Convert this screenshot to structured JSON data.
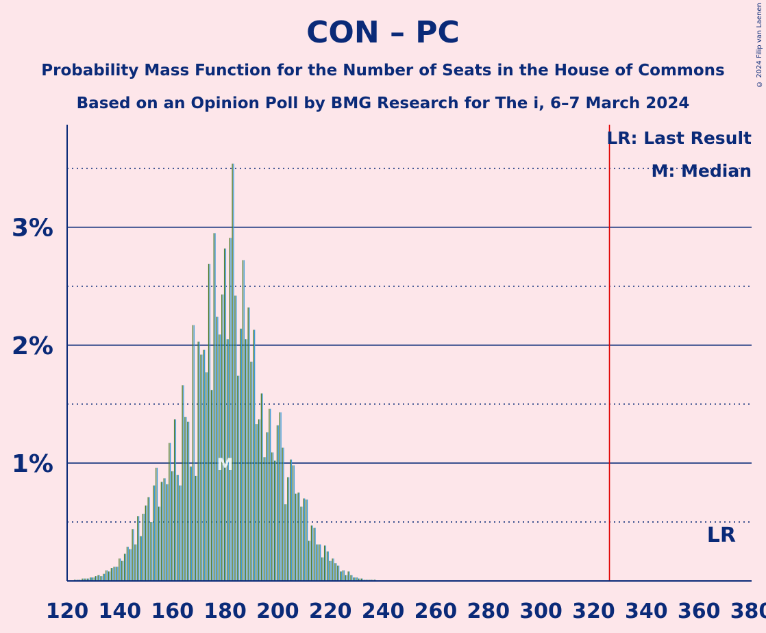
{
  "title": "CON – PC",
  "subtitle_line1": "Probability Mass Function for the Number of Seats in the House of Commons",
  "subtitle_line2": "Based on an Opinion Poll by BMG Research for The i, 6–7 March 2024",
  "credit": "© 2024 Filip van Laenen",
  "colors": {
    "background": "#fde6ea",
    "text": "#0a2a78",
    "bar_green": "#4a7a28",
    "bar_blue": "#3a9ad8",
    "last_result_line": "#e00000"
  },
  "chart_data": {
    "type": "bar",
    "xlim": [
      120,
      380
    ],
    "ylim": [
      0,
      3.87
    ],
    "x_ticks": [
      120,
      140,
      160,
      180,
      200,
      220,
      240,
      260,
      280,
      300,
      320,
      340,
      360,
      380
    ],
    "y_ticks": [
      {
        "value": 1,
        "label": "1%"
      },
      {
        "value": 2,
        "label": "2%"
      },
      {
        "value": 3,
        "label": "3%"
      }
    ],
    "dotted_gridlines": [
      0.5,
      1.5,
      2.5,
      3.5
    ],
    "legend": [
      {
        "label": "LR: Last Result"
      },
      {
        "label": "M: Median"
      }
    ],
    "last_result": {
      "x": 326,
      "label": "LR"
    },
    "median": {
      "x": 180,
      "label": "M"
    },
    "series": [
      {
        "values": [
          [
            123,
            0.01
          ],
          [
            124,
            0.01
          ],
          [
            125,
            0.01
          ],
          [
            126,
            0.02
          ],
          [
            127,
            0.02
          ],
          [
            128,
            0.02
          ],
          [
            129,
            0.03
          ],
          [
            130,
            0.03
          ],
          [
            131,
            0.04
          ],
          [
            132,
            0.05
          ],
          [
            133,
            0.04
          ],
          [
            134,
            0.06
          ],
          [
            135,
            0.09
          ],
          [
            136,
            0.08
          ],
          [
            137,
            0.11
          ],
          [
            138,
            0.12
          ],
          [
            139,
            0.12
          ],
          [
            140,
            0.19
          ],
          [
            141,
            0.17
          ],
          [
            142,
            0.23
          ],
          [
            143,
            0.29
          ],
          [
            144,
            0.27
          ],
          [
            145,
            0.44
          ],
          [
            146,
            0.31
          ],
          [
            147,
            0.55
          ],
          [
            148,
            0.38
          ],
          [
            149,
            0.57
          ],
          [
            150,
            0.64
          ],
          [
            151,
            0.71
          ],
          [
            152,
            0.5
          ],
          [
            153,
            0.81
          ],
          [
            154,
            0.96
          ],
          [
            155,
            0.63
          ],
          [
            156,
            0.84
          ],
          [
            157,
            0.87
          ],
          [
            158,
            0.82
          ],
          [
            159,
            1.17
          ],
          [
            160,
            0.93
          ],
          [
            161,
            1.37
          ],
          [
            162,
            0.9
          ],
          [
            163,
            0.81
          ],
          [
            164,
            1.66
          ],
          [
            165,
            1.39
          ],
          [
            166,
            1.35
          ],
          [
            167,
            0.97
          ],
          [
            168,
            2.17
          ],
          [
            169,
            0.89
          ],
          [
            170,
            2.03
          ],
          [
            171,
            1.92
          ],
          [
            172,
            1.96
          ],
          [
            173,
            1.77
          ],
          [
            174,
            2.69
          ],
          [
            175,
            1.62
          ],
          [
            176,
            2.95
          ],
          [
            177,
            2.24
          ],
          [
            178,
            2.09
          ],
          [
            179,
            2.43
          ],
          [
            180,
            2.82
          ],
          [
            181,
            2.05
          ],
          [
            182,
            2.91
          ],
          [
            183,
            3.54
          ],
          [
            184,
            2.42
          ],
          [
            185,
            1.74
          ],
          [
            186,
            2.14
          ],
          [
            187,
            2.72
          ],
          [
            188,
            2.05
          ],
          [
            189,
            2.32
          ],
          [
            190,
            1.86
          ],
          [
            191,
            2.13
          ],
          [
            192,
            1.33
          ],
          [
            193,
            1.37
          ],
          [
            194,
            1.59
          ],
          [
            195,
            1.05
          ],
          [
            196,
            1.26
          ],
          [
            197,
            1.46
          ],
          [
            198,
            1.09
          ],
          [
            199,
            1.02
          ],
          [
            200,
            1.32
          ],
          [
            201,
            1.43
          ],
          [
            202,
            1.13
          ],
          [
            203,
            0.65
          ],
          [
            204,
            0.88
          ],
          [
            205,
            1.03
          ],
          [
            206,
            0.98
          ],
          [
            207,
            0.74
          ],
          [
            208,
            0.75
          ],
          [
            209,
            0.63
          ],
          [
            210,
            0.7
          ],
          [
            211,
            0.69
          ],
          [
            212,
            0.34
          ],
          [
            213,
            0.47
          ],
          [
            214,
            0.45
          ],
          [
            215,
            0.31
          ],
          [
            216,
            0.31
          ],
          [
            217,
            0.2
          ],
          [
            218,
            0.3
          ],
          [
            219,
            0.25
          ],
          [
            220,
            0.17
          ],
          [
            221,
            0.19
          ],
          [
            222,
            0.15
          ],
          [
            223,
            0.13
          ],
          [
            224,
            0.08
          ],
          [
            225,
            0.09
          ],
          [
            226,
            0.05
          ],
          [
            227,
            0.08
          ],
          [
            228,
            0.05
          ],
          [
            229,
            0.03
          ],
          [
            230,
            0.03
          ],
          [
            231,
            0.02
          ],
          [
            232,
            0.02
          ],
          [
            233,
            0.01
          ],
          [
            234,
            0.01
          ],
          [
            235,
            0.01
          ],
          [
            236,
            0.01
          ],
          [
            237,
            0.01
          ],
          [
            238,
            0.005
          ],
          [
            239,
            0.005
          ],
          [
            240,
            0.005
          ]
        ]
      }
    ]
  }
}
